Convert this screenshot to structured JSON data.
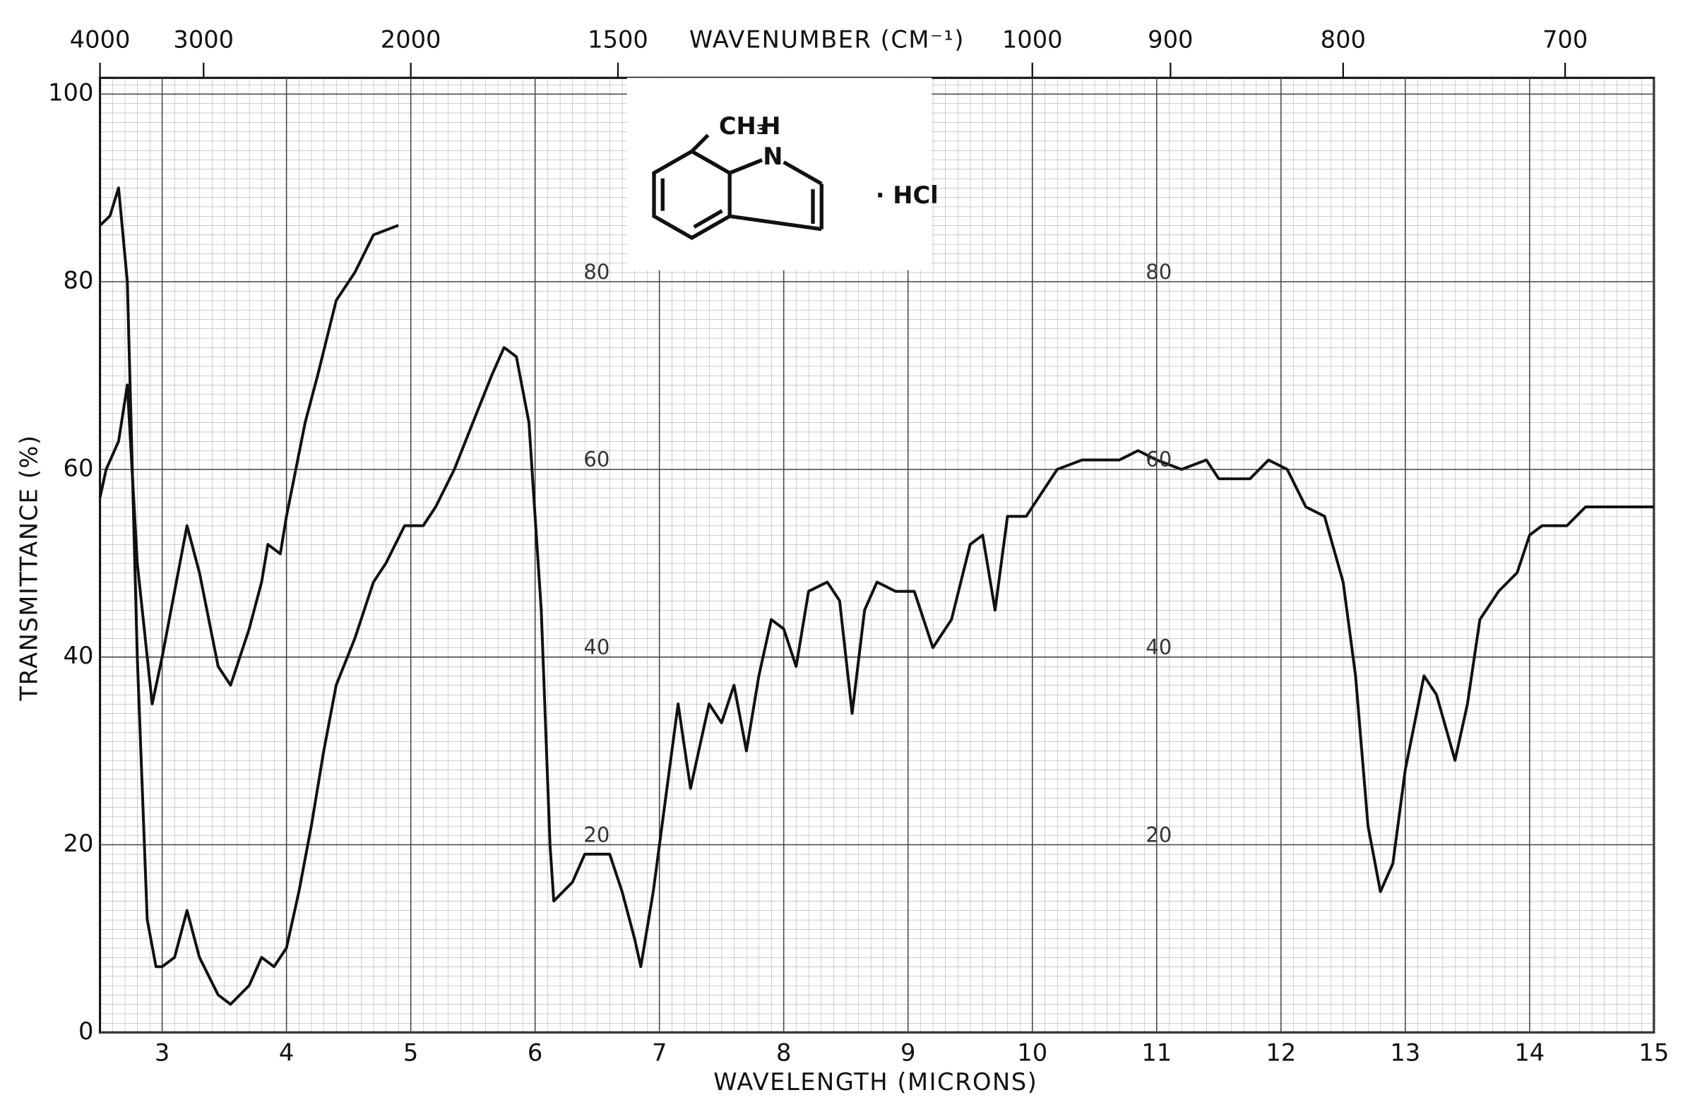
{
  "chart_data": {
    "type": "line",
    "x_label": "WAVELENGTH (MICRONS)",
    "x2_label": "WAVENUMBER (CM⁻¹)",
    "y_label": "TRANSMITTANCE (%)",
    "xlim": [
      2.5,
      15
    ],
    "xticks": [
      3,
      4,
      5,
      6,
      7,
      8,
      9,
      10,
      11,
      12,
      13,
      14,
      15
    ],
    "x2lim": [
      4000,
      666.67
    ],
    "x2scale": "reciprocal",
    "x2ticks": [
      4000,
      3000,
      2000,
      1500,
      1000,
      900,
      800,
      700
    ],
    "ylim": [
      0,
      100
    ],
    "yticks": [
      0,
      20,
      40,
      60,
      80,
      100
    ],
    "inner_yticks": [
      80,
      60,
      40,
      20
    ],
    "grid": true,
    "series": [
      {
        "color": "#111111",
        "x": [
          2.5,
          2.58,
          2.65,
          2.72,
          2.8,
          2.88,
          2.95,
          3.0,
          3.1,
          3.2,
          3.3,
          3.45,
          3.55,
          3.7,
          3.8,
          3.9,
          4.0,
          4.1,
          4.2,
          4.3,
          4.4,
          4.55,
          4.7,
          4.8,
          4.95,
          5.1,
          5.2,
          5.35,
          5.5,
          5.65,
          5.75,
          5.85,
          5.95,
          6.05,
          6.12,
          6.15,
          6.3,
          6.4,
          6.5,
          6.6,
          6.7,
          6.8,
          6.85,
          6.95,
          7.05,
          7.15,
          7.25,
          7.35,
          7.4,
          7.5,
          7.6,
          7.7,
          7.8,
          7.9,
          8.0,
          8.1,
          8.2,
          8.35,
          8.45,
          8.55,
          8.65,
          8.75,
          8.9,
          9.05,
          9.2,
          9.35,
          9.5,
          9.6,
          9.7,
          9.8,
          9.95,
          10.1,
          10.2,
          10.4,
          10.7,
          10.85,
          11.0,
          11.2,
          11.4,
          11.5,
          11.75,
          11.9,
          12.05,
          12.2,
          12.35,
          12.5,
          12.6,
          12.7,
          12.8,
          12.9,
          13.0,
          13.15,
          13.25,
          13.4,
          13.5,
          13.6,
          13.75,
          13.9,
          14.0,
          14.1,
          14.3,
          14.45,
          14.7,
          15.0
        ],
        "y": [
          86,
          87,
          90,
          80,
          40,
          12,
          7,
          7,
          8,
          13,
          8,
          4,
          3,
          5,
          8,
          7,
          9,
          15,
          22,
          30,
          37,
          42,
          48,
          50,
          54,
          54,
          56,
          60,
          65,
          70,
          73,
          72,
          65,
          45,
          20,
          14,
          16,
          19,
          19,
          19,
          15,
          10,
          7,
          15,
          25,
          35,
          26,
          32,
          35,
          33,
          37,
          30,
          38,
          44,
          43,
          39,
          47,
          48,
          46,
          34,
          45,
          48,
          47,
          47,
          41,
          44,
          52,
          53,
          45,
          55,
          55,
          58,
          60,
          61,
          61,
          62,
          61,
          60,
          61,
          59,
          59,
          61,
          60,
          56,
          55,
          48,
          38,
          22,
          15,
          18,
          28,
          38,
          36,
          29,
          35,
          44,
          47,
          49,
          53,
          54,
          54,
          56,
          56,
          56
        ]
      },
      {
        "color": "#111111",
        "x": [
          2.5,
          2.55,
          2.65,
          2.72,
          2.8,
          2.92,
          3.0,
          3.1,
          3.2,
          3.3,
          3.45,
          3.55,
          3.7,
          3.8,
          3.85,
          3.95,
          4.0,
          4.15,
          4.25,
          4.4,
          4.55,
          4.7,
          4.9
        ],
        "y": [
          57,
          60,
          63,
          69,
          50,
          35,
          40,
          47,
          54,
          49,
          39,
          37,
          43,
          48,
          52,
          51,
          55,
          65,
          70,
          78,
          81,
          85,
          86
        ]
      }
    ]
  },
  "structure": {
    "methyl": "CH₃",
    "hydrogen": "H",
    "nitrogen": "N",
    "salt": "· HCl"
  }
}
